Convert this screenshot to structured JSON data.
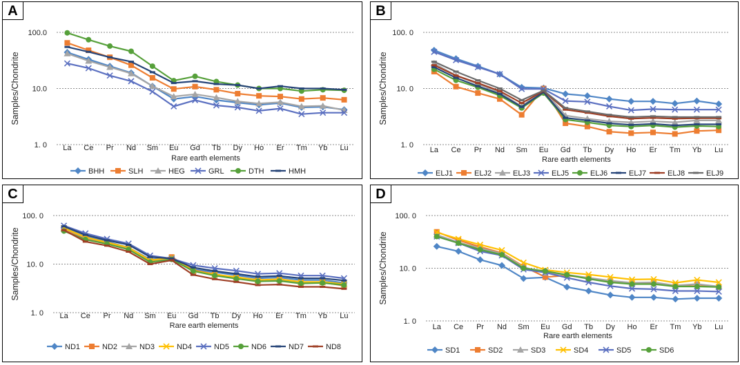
{
  "chart_data": [
    {
      "type": "line",
      "panel_label": "A",
      "title": "",
      "xlabel": "",
      "ylabel": "Samples/Chondrite",
      "yscale": "log",
      "ylim": [
        1,
        100
      ],
      "yticks": [
        "1. 0",
        "10.0",
        "100.0"
      ],
      "categories": [
        "La",
        "Ce",
        "Pr",
        "Nd",
        "Sm",
        "Eu",
        "Gd",
        "Tb",
        "Dy",
        "Ho",
        "Er",
        "Tm",
        "Yb",
        "Lu"
      ],
      "legend_position": "bottom",
      "series": [
        {
          "name": "BHH",
          "color": "#4f86c6",
          "marker": "diamond",
          "values": [
            44,
            33,
            25,
            19,
            11,
            6.5,
            7.2,
            6.2,
            5.6,
            5.1,
            5.5,
            4.6,
            4.7,
            4.2
          ]
        },
        {
          "name": "SLH",
          "color": "#ed7d31",
          "marker": "square",
          "values": [
            65,
            48,
            36,
            26,
            15.5,
            9.8,
            10.8,
            9.5,
            8.1,
            7.4,
            7.2,
            6.5,
            6.8,
            6.3
          ]
        },
        {
          "name": "HEG",
          "color": "#a5a5a5",
          "marker": "triangle",
          "values": [
            42,
            31,
            24,
            18.5,
            11,
            7.2,
            7.9,
            6.9,
            5.9,
            5.4,
            5.7,
            4.8,
            4.9,
            4.1
          ]
        },
        {
          "name": "GRL",
          "color": "#5a6fc0",
          "marker": "x",
          "values": [
            28,
            23,
            17,
            13.5,
            8.8,
            4.8,
            6.2,
            5,
            4.6,
            4,
            4.4,
            3.5,
            3.7,
            3.7
          ]
        },
        {
          "name": "DTH",
          "color": "#56a03a",
          "marker": "circle",
          "values": [
            98,
            74,
            57,
            46,
            25,
            13.8,
            16.5,
            13.3,
            11.5,
            10,
            10,
            9,
            9.5,
            9.3
          ]
        },
        {
          "name": "HMH",
          "color": "#264478",
          "marker": "dash",
          "values": [
            55,
            45,
            36,
            30,
            19.5,
            12.5,
            13.5,
            12,
            11.5,
            10,
            11,
            10,
            10,
            9.5
          ]
        }
      ]
    },
    {
      "type": "line",
      "panel_label": "B",
      "title": "",
      "xlabel": "Rare earth elements",
      "ylabel": "Samples/Chondrite",
      "yscale": "log",
      "ylim": [
        1,
        100
      ],
      "yticks": [
        "1. 0",
        "10. 0",
        "100. 0"
      ],
      "categories": [
        "La",
        "Ce",
        "Pr",
        "Nd",
        "Sm",
        "Eu",
        "Gd",
        "Tb",
        "Dy",
        "Ho",
        "Er",
        "Tm",
        "Yb",
        "Lu"
      ],
      "legend_position": "bottom",
      "series": [
        {
          "name": "ELJ1",
          "color": "#4f86c6",
          "marker": "diamond",
          "values": [
            48,
            34,
            25,
            18,
            10.5,
            10.2,
            8,
            7.4,
            6.5,
            5.9,
            5.9,
            5.4,
            6,
            5.3
          ]
        },
        {
          "name": "ELJ2",
          "color": "#ed7d31",
          "marker": "square",
          "values": [
            20,
            10.8,
            8.3,
            6.5,
            3.4,
            10,
            2.4,
            2.1,
            1.7,
            1.6,
            1.65,
            1.55,
            1.75,
            1.8
          ]
        },
        {
          "name": "ELJ3",
          "color": "#a5a5a5",
          "marker": "triangle",
          "values": [
            28,
            17,
            12,
            8.5,
            4.8,
            9.5,
            3.3,
            2.9,
            2.6,
            2.5,
            2.6,
            2.5,
            2.7,
            2.7
          ]
        },
        {
          "name": "ELJ5",
          "color": "#5a6fc0",
          "marker": "x",
          "values": [
            45,
            32,
            24,
            18,
            9.8,
            9.8,
            6,
            5.8,
            4.8,
            4.1,
            4.3,
            4.2,
            4.2,
            4.2
          ]
        },
        {
          "name": "ELJ6",
          "color": "#56a03a",
          "marker": "circle",
          "values": [
            22,
            14,
            10.5,
            7.5,
            4.5,
            8.3,
            2.8,
            2.5,
            2.2,
            2.1,
            2.2,
            2.05,
            2.15,
            2.1
          ]
        },
        {
          "name": "ELJ7",
          "color": "#264478",
          "marker": "dash",
          "values": [
            24,
            15.5,
            11,
            8,
            4.7,
            8.6,
            3,
            2.7,
            2.4,
            2.25,
            2.35,
            2.2,
            2.3,
            2.3
          ]
        },
        {
          "name": "ELJ8",
          "color": "#9e3e24",
          "marker": "dash",
          "values": [
            26,
            17,
            12.5,
            9,
            5.5,
            9,
            4.2,
            3.7,
            3.2,
            2.9,
            3,
            2.9,
            2.95,
            2.95
          ]
        },
        {
          "name": "ELJ9",
          "color": "#6b6b6b",
          "marker": "dash",
          "values": [
            30,
            20,
            14,
            10,
            6.2,
            9.2,
            4.5,
            3.9,
            3.4,
            3.1,
            3.2,
            3.1,
            3.1,
            3.1
          ]
        }
      ]
    },
    {
      "type": "line",
      "panel_label": "C",
      "title": "",
      "xlabel": "Rare earth elements",
      "ylabel": "Samples/Chondrite",
      "yscale": "log",
      "ylim": [
        1,
        100
      ],
      "yticks": [
        "1. 0",
        "10. 0",
        "100. 0"
      ],
      "categories": [
        "La",
        "Ce",
        "Pr",
        "Nd",
        "Sm",
        "Eu",
        "Gd",
        "Tb",
        "Dy",
        "Ho",
        "Er",
        "Tm",
        "Yb",
        "Lu"
      ],
      "legend_position": "bottom",
      "series": [
        {
          "name": "ND1",
          "color": "#4f86c6",
          "marker": "diamond",
          "values": [
            56,
            37,
            29,
            22,
            12.5,
            13.5,
            7.8,
            6.8,
            5.9,
            5.1,
            5.3,
            4.7,
            4.7,
            4.1
          ]
        },
        {
          "name": "ND2",
          "color": "#ed7d31",
          "marker": "square",
          "values": [
            52,
            34,
            27,
            21,
            11.5,
            14,
            7.5,
            6.2,
            5.2,
            4.5,
            4.8,
            4.1,
            4.2,
            3.6
          ]
        },
        {
          "name": "ND3",
          "color": "#a5a5a5",
          "marker": "triangle",
          "values": [
            54,
            35,
            28,
            21.5,
            12,
            13,
            7.1,
            6,
            5.3,
            4.6,
            4.8,
            4.2,
            4.2,
            3.8
          ]
        },
        {
          "name": "ND4",
          "color": "#ffc000",
          "marker": "x",
          "values": [
            55,
            36,
            28,
            22,
            12,
            13.5,
            7.3,
            6.1,
            5.4,
            4.7,
            4.9,
            4.3,
            4.3,
            3.9
          ]
        },
        {
          "name": "ND5",
          "color": "#5a6fc0",
          "marker": "x",
          "values": [
            62,
            43,
            33,
            26.5,
            15,
            13,
            9.5,
            8.2,
            7.3,
            6.3,
            6.5,
            5.8,
            5.8,
            5.1
          ]
        },
        {
          "name": "ND6",
          "color": "#56a03a",
          "marker": "circle",
          "values": [
            48,
            32,
            26,
            20,
            11,
            12.5,
            7.2,
            5.8,
            5,
            4.4,
            4.5,
            4,
            4.1,
            3.7
          ]
        },
        {
          "name": "ND7",
          "color": "#264478",
          "marker": "dash",
          "values": [
            60,
            40,
            31,
            25,
            14,
            13,
            8.5,
            7.2,
            6.3,
            5.5,
            5.7,
            5.1,
            5.1,
            4.6
          ]
        },
        {
          "name": "ND8",
          "color": "#9e3e24",
          "marker": "dash",
          "values": [
            50,
            29,
            24,
            18,
            10,
            12,
            6,
            4.9,
            4.3,
            3.7,
            3.8,
            3.4,
            3.4,
            3.1
          ]
        }
      ]
    },
    {
      "type": "line",
      "panel_label": "D",
      "title": "",
      "xlabel": "Rare earth elements",
      "ylabel": "Samples/Chondrite",
      "yscale": "log",
      "ylim": [
        1,
        100
      ],
      "yticks": [
        "1. 0",
        "10. 0",
        "100. 0"
      ],
      "categories": [
        "La",
        "Ce",
        "Pr",
        "Nd",
        "Sm",
        "Eu",
        "Gd",
        "Tb",
        "Dy",
        "Ho",
        "Er",
        "Tm",
        "Yb",
        "Lu"
      ],
      "legend_position": "bottom",
      "series": [
        {
          "name": "SD1",
          "color": "#4f86c6",
          "marker": "diamond",
          "values": [
            26,
            21,
            14.5,
            11.3,
            6.4,
            6.7,
            4.4,
            3.7,
            3.1,
            2.8,
            2.8,
            2.6,
            2.7,
            2.7
          ]
        },
        {
          "name": "SD2",
          "color": "#ed7d31",
          "marker": "square",
          "values": [
            49,
            34,
            25.5,
            19.5,
            10.8,
            6.8,
            7.3,
            6.5,
            5.7,
            5.2,
            5.3,
            4.6,
            4.9,
            4.4
          ]
        },
        {
          "name": "SD3",
          "color": "#a5a5a5",
          "marker": "triangle",
          "values": [
            43,
            31,
            24,
            19,
            10.5,
            8.2,
            7.5,
            6.6,
            5.8,
            5.3,
            5.4,
            4.7,
            5,
            4.5
          ]
        },
        {
          "name": "SD4",
          "color": "#ffc000",
          "marker": "x",
          "values": [
            48,
            36,
            28,
            22,
            12.8,
            9.3,
            8.3,
            7.6,
            6.8,
            6.1,
            6.2,
            5.3,
            6,
            5.4
          ]
        },
        {
          "name": "SD5",
          "color": "#5a6fc0",
          "marker": "x",
          "values": [
            40,
            30,
            21,
            17.5,
            9.5,
            8.3,
            6.6,
            5.4,
            4.6,
            4.1,
            4,
            3.7,
            3.7,
            3.6
          ]
        },
        {
          "name": "SD6",
          "color": "#56a03a",
          "marker": "circle",
          "values": [
            40,
            30,
            22.5,
            18,
            10,
            8.8,
            7.5,
            6.3,
            5.4,
            5,
            5,
            4.5,
            4.5,
            4.4
          ]
        }
      ]
    }
  ],
  "xlabel_a": "Rare earth elements"
}
